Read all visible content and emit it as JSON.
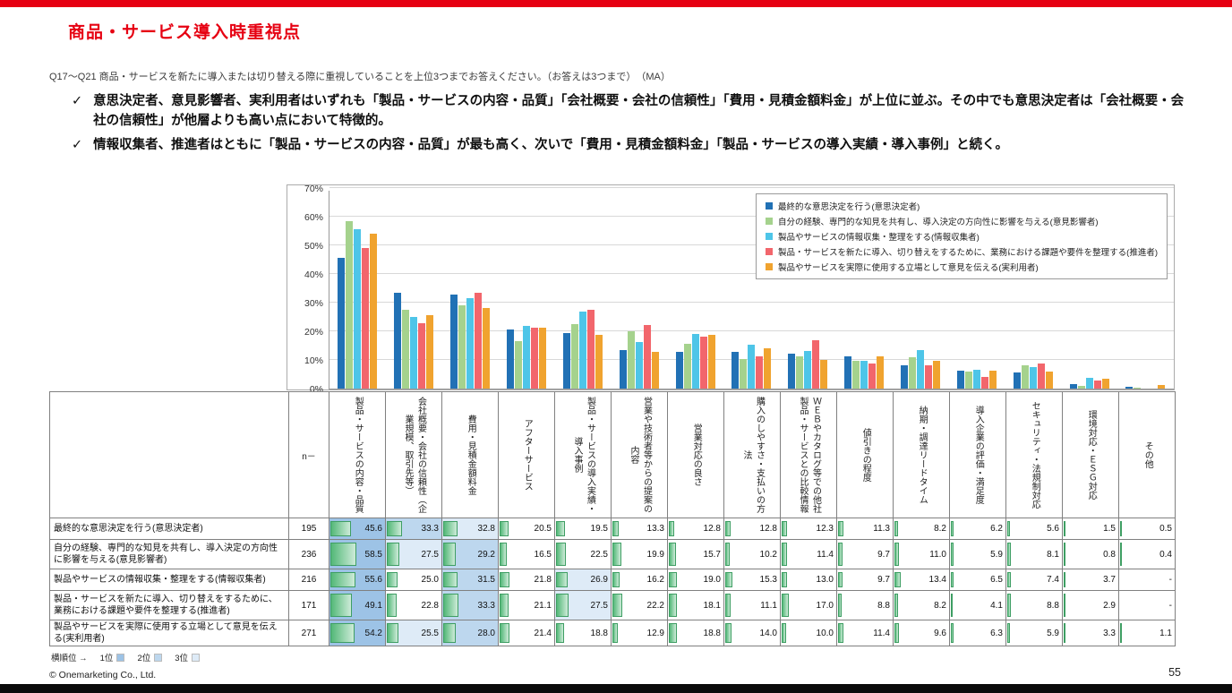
{
  "header": {
    "title": "商品・サービス導入時重視点",
    "question": "Q17～Q21 商品・サービスを新たに導入または切り替える際に重視していることを上位3つまでお答えください。（お答えは3つまで）　（MA）"
  },
  "bullets": [
    "意思決定者、意見影響者、実利用者はいずれも「製品・サービスの内容・品質」「会社概要・会社の信頼性」「費用・見積金額料金」が上位に並ぶ。その中でも意思決定者は「会社概要・会社の信頼性」が他層よりも高い点において特徴的。",
    "情報収集者、推進者はともに「製品・サービスの内容・品質」が最も高く、次いで「費用・見積金額料金」「製品・サービスの導入実績・導入事例」と続く。"
  ],
  "chart_data": {
    "type": "bar",
    "title": "",
    "ylim": [
      0,
      70
    ],
    "yticks": [
      0,
      10,
      20,
      30,
      40,
      50,
      60,
      70
    ],
    "ytick_suffix": "%",
    "grid": true,
    "legend_position": "top-right",
    "categories": [
      "製品・サービスの内容・品質",
      "会社概要・会社の信頼性（企業規模、取引先等）",
      "費用・見積金額料金",
      "アフターサービス",
      "製品・サービスの導入実績・導入事例",
      "営業や技術者等からの提案の内容",
      "営業対応の良さ",
      "購入のしやすさ・支払いの方法",
      "ＷＥＢやカタログ等での他社製品・サービスとの比較情報",
      "値引きの程度",
      "納期・調達リードタイム",
      "導入企業の評価・満足度",
      "セキュリティ・法規制対応",
      "環境対応・ＥＳＧ対応",
      "その他"
    ],
    "series": [
      {
        "name": "最終的な意思決定を行う(意思決定者)",
        "n": 195,
        "color": "#2171B5",
        "values": [
          45.6,
          33.3,
          32.8,
          20.5,
          19.5,
          13.3,
          12.8,
          12.8,
          12.3,
          11.3,
          8.2,
          6.2,
          5.6,
          1.5,
          0.5
        ]
      },
      {
        "name": "自分の経験、専門的な知見を共有し、導入決定の方向性に影響を与える(意見影響者)",
        "n": 236,
        "color": "#A5D28D",
        "values": [
          58.5,
          27.5,
          29.2,
          16.5,
          22.5,
          19.9,
          15.7,
          10.2,
          11.4,
          9.7,
          11.0,
          5.9,
          8.1,
          0.8,
          0.4
        ]
      },
      {
        "name": "製品やサービスの情報収集・整理をする(情報収集者)",
        "n": 216,
        "color": "#4EC5E8",
        "values": [
          55.6,
          25.0,
          31.5,
          21.8,
          26.9,
          16.2,
          19.0,
          15.3,
          13.0,
          9.7,
          13.4,
          6.5,
          7.4,
          3.7,
          null
        ]
      },
      {
        "name": "製品・サービスを新たに導入、切り替えをするために、業務における課題や要件を整理する(推進者)",
        "n": 171,
        "color": "#F2666C",
        "values": [
          49.1,
          22.8,
          33.3,
          21.1,
          27.5,
          22.2,
          18.1,
          11.1,
          17.0,
          8.8,
          8.2,
          4.1,
          8.8,
          2.9,
          null
        ]
      },
      {
        "name": "製品やサービスを実際に使用する立場として意見を伝える(実利用者)",
        "n": 271,
        "color": "#F0A32F",
        "values": [
          54.2,
          25.5,
          28.0,
          21.4,
          18.8,
          12.9,
          18.8,
          14.0,
          10.0,
          11.4,
          9.6,
          6.3,
          5.9,
          3.3,
          1.1
        ]
      }
    ]
  },
  "table": {
    "n_header": "n－",
    "empty_value": "-",
    "rank_colors": {
      "1": "#9DC3E6",
      "2": "#BDD7EE",
      "3": "#DEEBF7"
    },
    "rank_legend": {
      "prefix": "横順位 →",
      "items": [
        "1位",
        "2位",
        "3位"
      ]
    }
  },
  "footer": {
    "copyright": "© Onemarketing Co., Ltd.",
    "page": "55"
  }
}
